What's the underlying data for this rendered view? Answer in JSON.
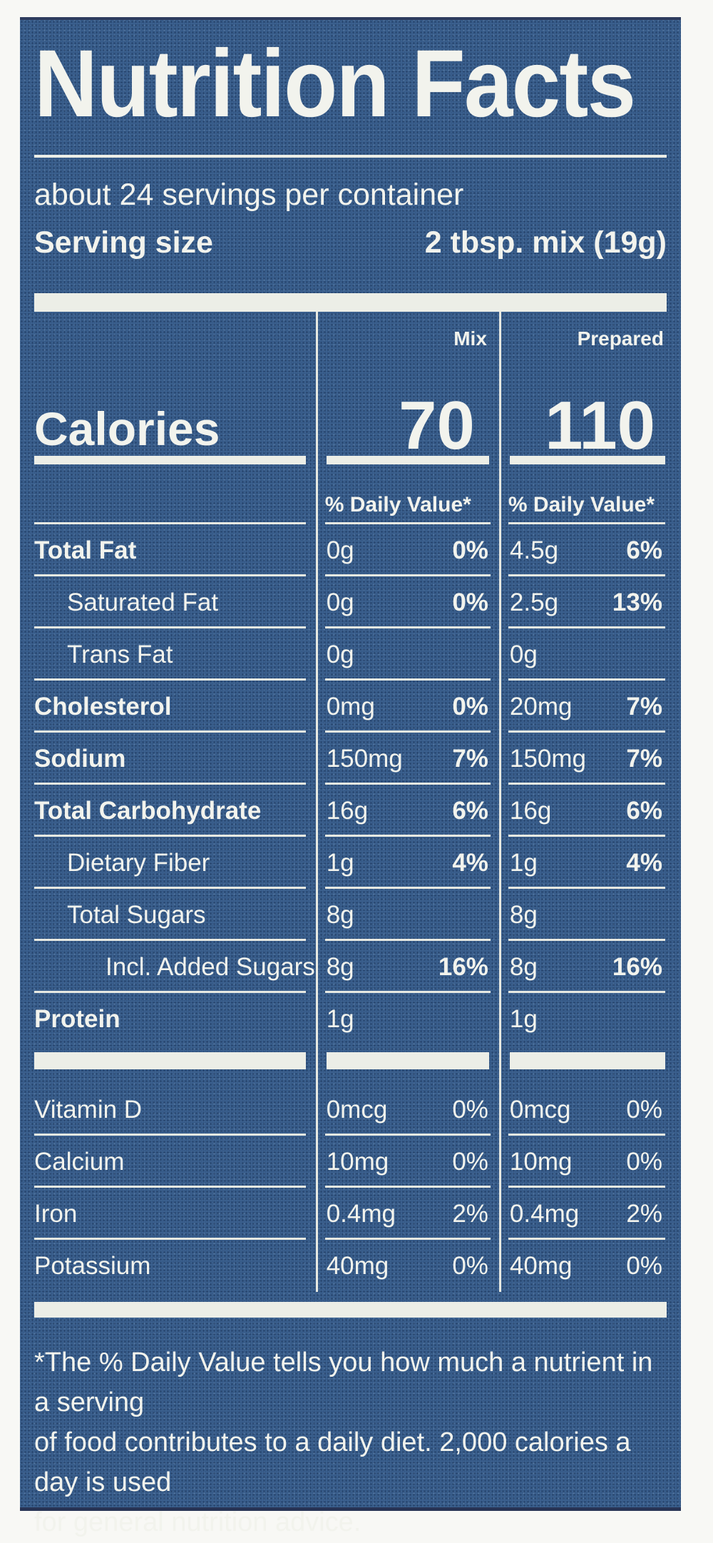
{
  "title": "Nutrition Facts",
  "servings_per_container": "about 24 servings per container",
  "serving_size_label": "Serving size",
  "serving_size_value": "2 tbsp. mix (19g)",
  "columns": {
    "mix": "Mix",
    "prepared": "Prepared"
  },
  "calories": {
    "label": "Calories",
    "mix": "70",
    "prepared": "110"
  },
  "daily_value_header": "% Daily Value*",
  "rows": [
    {
      "label": "Total Fat",
      "bold": true,
      "indent": 0,
      "mix_amount": "0g",
      "mix_dv": "0%",
      "prep_amount": "4.5g",
      "prep_dv": "6%"
    },
    {
      "label": "Saturated Fat",
      "bold": false,
      "indent": 1,
      "mix_amount": "0g",
      "mix_dv": "0%",
      "prep_amount": "2.5g",
      "prep_dv": "13%"
    },
    {
      "label": "Trans Fat",
      "bold": false,
      "indent": 1,
      "mix_amount": "0g",
      "mix_dv": "",
      "prep_amount": "0g",
      "prep_dv": ""
    },
    {
      "label": "Cholesterol",
      "bold": true,
      "indent": 0,
      "mix_amount": "0mg",
      "mix_dv": "0%",
      "prep_amount": "20mg",
      "prep_dv": "7%"
    },
    {
      "label": "Sodium",
      "bold": true,
      "indent": 0,
      "mix_amount": "150mg",
      "mix_dv": "7%",
      "prep_amount": "150mg",
      "prep_dv": "7%"
    },
    {
      "label": "Total Carbohydrate",
      "bold": true,
      "indent": 0,
      "mix_amount": "16g",
      "mix_dv": "6%",
      "prep_amount": "16g",
      "prep_dv": "6%"
    },
    {
      "label": "Dietary Fiber",
      "bold": false,
      "indent": 1,
      "mix_amount": "1g",
      "mix_dv": "4%",
      "prep_amount": "1g",
      "prep_dv": "4%"
    },
    {
      "label": "Total Sugars",
      "bold": false,
      "indent": 1,
      "mix_amount": "8g",
      "mix_dv": "",
      "prep_amount": "8g",
      "prep_dv": ""
    },
    {
      "label": "Incl. Added Sugars",
      "bold": false,
      "indent": 2,
      "mix_amount": "8g",
      "mix_dv": "16%",
      "prep_amount": "8g",
      "prep_dv": "16%"
    },
    {
      "label": "Protein",
      "bold": true,
      "indent": 0,
      "mix_amount": "1g",
      "mix_dv": "",
      "prep_amount": "1g",
      "prep_dv": ""
    }
  ],
  "vitamin_rows": [
    {
      "label": "Vitamin D",
      "mix_amount": "0mcg",
      "mix_dv": "0%",
      "prep_amount": "0mcg",
      "prep_dv": "0%"
    },
    {
      "label": "Calcium",
      "mix_amount": "10mg",
      "mix_dv": "0%",
      "prep_amount": "10mg",
      "prep_dv": "0%"
    },
    {
      "label": "Iron",
      "mix_amount": "0.4mg",
      "mix_dv": "2%",
      "prep_amount": "0.4mg",
      "prep_dv": "2%"
    },
    {
      "label": "Potassium",
      "mix_amount": "40mg",
      "mix_dv": "0%",
      "prep_amount": "40mg",
      "prep_dv": "0%"
    }
  ],
  "footnote_lines": [
    "*The % Daily Value tells you how much a nutrient in a serving",
    "of food contributes to a daily diet. 2,000 calories a day is used",
    "for general nutrition advice."
  ],
  "colors": {
    "label_background": "#3e6492",
    "text": "#f2f3ed",
    "rule": "#e7e9e2"
  }
}
